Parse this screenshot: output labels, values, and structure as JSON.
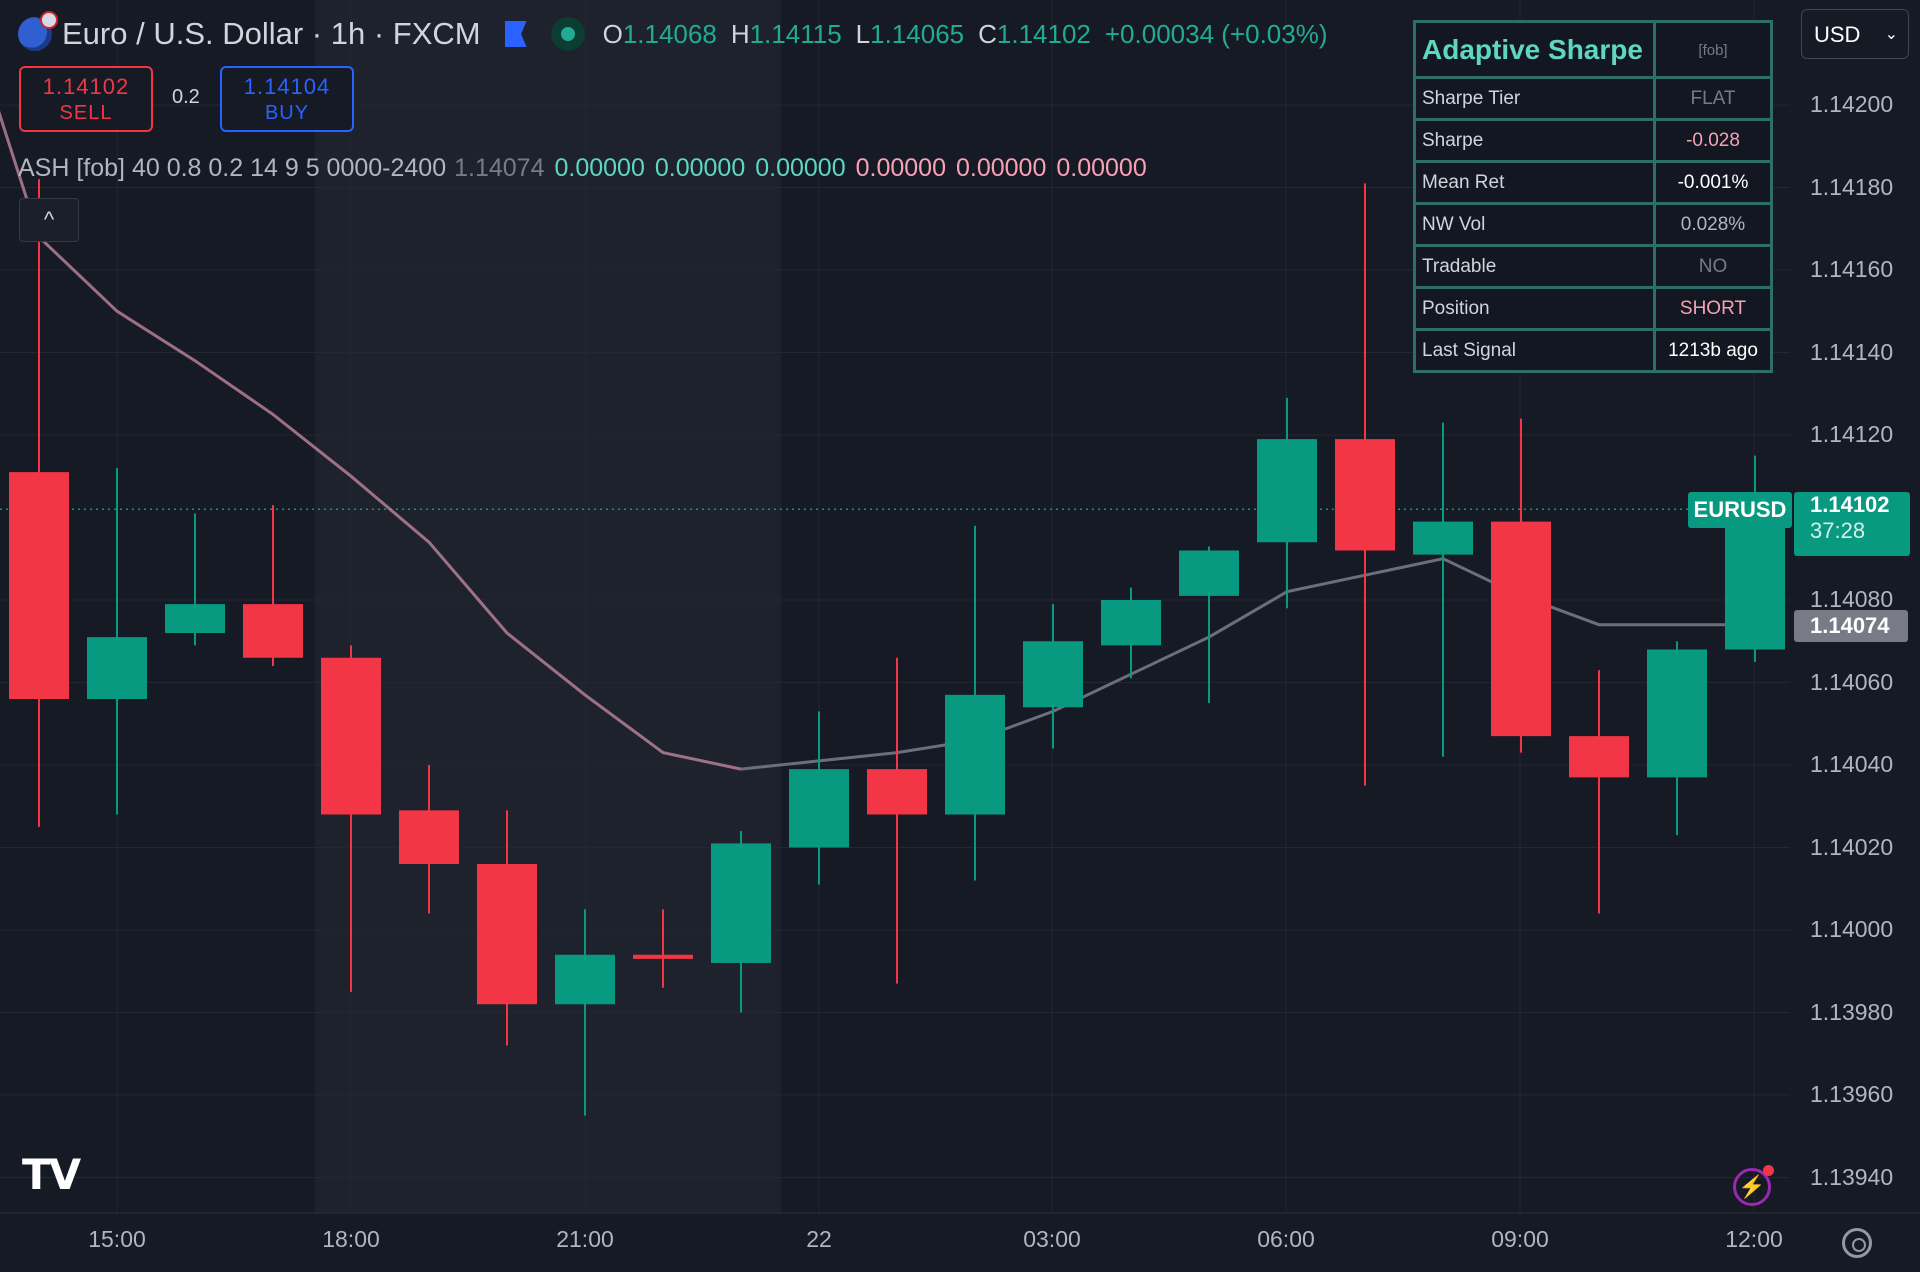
{
  "header": {
    "symbol": "Euro / U.S. Dollar · 1h · FXCM",
    "o_label": "O",
    "o_value": "1.14068",
    "h_label": "H",
    "h_value": "1.14115",
    "l_label": "L",
    "l_value": "1.14065",
    "c_label": "C",
    "c_value": "1.14102",
    "change": "+0.00034 (+0.03%)"
  },
  "trade": {
    "sell_price": "1.14102",
    "sell_label": "SELL",
    "spread": "0.2",
    "buy_price": "1.14104",
    "buy_label": "BUY"
  },
  "indicator": {
    "name": "ASH [fob] 40 0.8 0.2 14 9 5 0000-2400",
    "current": "1.14074",
    "v1": "0.00000",
    "v2": "0.00000",
    "v3": "0.00000",
    "v4": "0.00000",
    "v5": "0.00000",
    "v6": "0.00000"
  },
  "collapse_glyph": "^",
  "currency": {
    "value": "USD",
    "chevron": "⌄"
  },
  "logo_text": "TV",
  "bolt_glyph": "⚡",
  "table": {
    "title": "Adaptive Sharpe",
    "tag": "[fob]",
    "rows": [
      {
        "label": "Sharpe Tier",
        "value": "FLAT",
        "color": "#787b86"
      },
      {
        "label": "Sharpe",
        "value": "-0.028",
        "color": "#f7a1b5"
      },
      {
        "label": "Mean Ret",
        "value": "-0.001%",
        "color": "#ffffff"
      },
      {
        "label": "NW Vol",
        "value": "0.028%",
        "color": "#b2b5be"
      },
      {
        "label": "Tradable",
        "value": "NO",
        "color": "#787b86"
      },
      {
        "label": "Position",
        "value": "SHORT",
        "color": "#f7a1b5"
      },
      {
        "label": "Last Signal",
        "value": "1213b ago",
        "color": "#ffffff"
      }
    ]
  },
  "price_axis": [
    "1.14200",
    "1.14180",
    "1.14160",
    "1.14140",
    "1.14120",
    "1.14080",
    "1.14060",
    "1.14040",
    "1.14020",
    "1.14000",
    "1.13980",
    "1.13960",
    "1.13940"
  ],
  "time_axis": [
    "15:00",
    "18:00",
    "21:00",
    "22",
    "03:00",
    "06:00",
    "09:00",
    "12:00"
  ],
  "tags": {
    "symbol": "EURUSD",
    "last_price": "1.14102",
    "countdown": "37:28",
    "line_value": "1.14074"
  },
  "colors": {
    "up": "#089981",
    "down": "#f23645",
    "bg": "#161a25",
    "line": "#6a6f7e",
    "line_fade": "#c98ca3"
  },
  "chart_data": {
    "type": "candlestick",
    "interval": "1h",
    "ylim": [
      1.1393,
      1.1421
    ],
    "candles": [
      {
        "t": "14:00",
        "o": 1.14111,
        "h": 1.14182,
        "l": 1.14025,
        "c": 1.14056
      },
      {
        "t": "15:00",
        "o": 1.14056,
        "h": 1.14112,
        "l": 1.14028,
        "c": 1.14071
      },
      {
        "t": "16:00",
        "o": 1.14072,
        "h": 1.14101,
        "l": 1.14069,
        "c": 1.14079
      },
      {
        "t": "17:00",
        "o": 1.14079,
        "h": 1.14103,
        "l": 1.14064,
        "c": 1.14066
      },
      {
        "t": "18:00",
        "o": 1.14066,
        "h": 1.14069,
        "l": 1.13985,
        "c": 1.14028
      },
      {
        "t": "19:00",
        "o": 1.14029,
        "h": 1.1404,
        "l": 1.14004,
        "c": 1.14016
      },
      {
        "t": "20:00",
        "o": 1.14016,
        "h": 1.14029,
        "l": 1.13972,
        "c": 1.13982
      },
      {
        "t": "21:00",
        "o": 1.13982,
        "h": 1.14005,
        "l": 1.13955,
        "c": 1.13994
      },
      {
        "t": "22:00",
        "o": 1.13994,
        "h": 1.14005,
        "l": 1.13986,
        "c": 1.13993
      },
      {
        "t": "23:00",
        "o": 1.13992,
        "h": 1.14024,
        "l": 1.1398,
        "c": 1.14021
      },
      {
        "t": "00:00",
        "o": 1.1402,
        "h": 1.14053,
        "l": 1.14011,
        "c": 1.14039
      },
      {
        "t": "01:00",
        "o": 1.14039,
        "h": 1.14066,
        "l": 1.13987,
        "c": 1.14028
      },
      {
        "t": "02:00",
        "o": 1.14028,
        "h": 1.14098,
        "l": 1.14012,
        "c": 1.14057
      },
      {
        "t": "03:00",
        "o": 1.14054,
        "h": 1.14079,
        "l": 1.14044,
        "c": 1.1407
      },
      {
        "t": "04:00",
        "o": 1.14069,
        "h": 1.14083,
        "l": 1.14061,
        "c": 1.1408
      },
      {
        "t": "05:00",
        "o": 1.14081,
        "h": 1.14093,
        "l": 1.14055,
        "c": 1.14092
      },
      {
        "t": "06:00",
        "o": 1.14094,
        "h": 1.14129,
        "l": 1.14078,
        "c": 1.14119
      },
      {
        "t": "07:00",
        "o": 1.14119,
        "h": 1.14181,
        "l": 1.14035,
        "c": 1.14092
      },
      {
        "t": "08:00",
        "o": 1.14091,
        "h": 1.14123,
        "l": 1.14042,
        "c": 1.14099
      },
      {
        "t": "09:00",
        "o": 1.14099,
        "h": 1.14124,
        "l": 1.14043,
        "c": 1.14047
      },
      {
        "t": "10:00",
        "o": 1.14047,
        "h": 1.14063,
        "l": 1.14004,
        "c": 1.14037
      },
      {
        "t": "11:00",
        "o": 1.14037,
        "h": 1.1407,
        "l": 1.14023,
        "c": 1.14068
      },
      {
        "t": "12:00",
        "o": 1.14068,
        "h": 1.14115,
        "l": 1.14065,
        "c": 1.14102
      }
    ],
    "series": [
      {
        "name": "ASH",
        "values": [
          1.14168,
          1.1415,
          1.14138,
          1.14125,
          1.1411,
          1.14094,
          1.14072,
          1.14057,
          1.14043,
          1.14039,
          1.14041,
          1.14043,
          1.14046,
          1.14053,
          1.14062,
          1.14071,
          1.14082,
          1.14086,
          1.1409,
          1.14081,
          1.14074,
          1.14074,
          1.14074
        ]
      }
    ],
    "last_price": 1.14102
  }
}
